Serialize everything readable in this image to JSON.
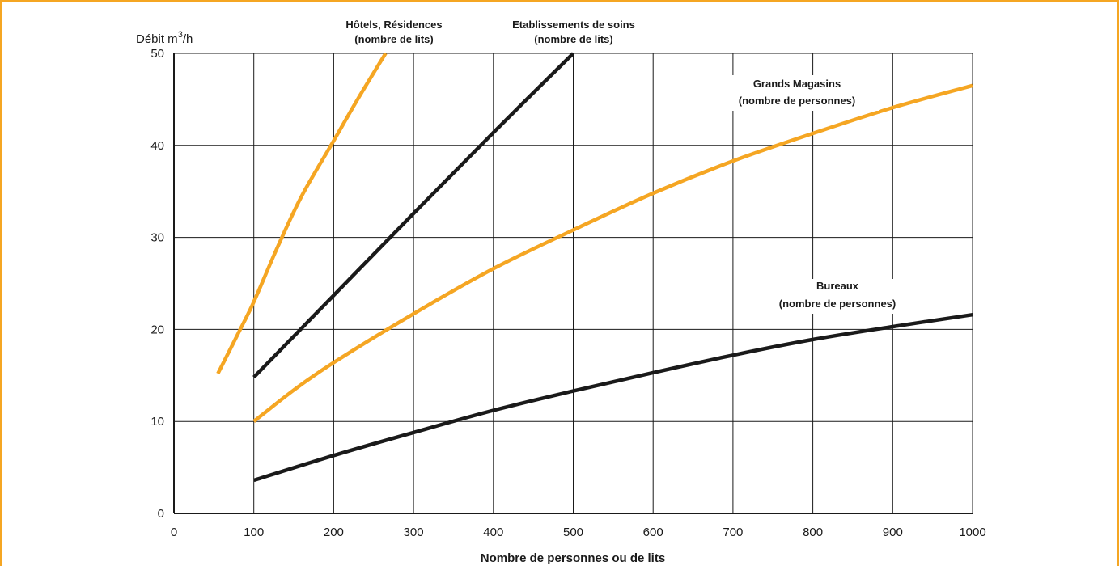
{
  "chart_data": {
    "type": "line",
    "ylabel_prefix": "Débit m",
    "ylabel_sup": "3",
    "ylabel_suffix": "/h",
    "xlabel": "Nombre de personnes ou de lits",
    "xlim": [
      0,
      1000
    ],
    "ylim": [
      0,
      50
    ],
    "x_ticks": [
      0,
      100,
      200,
      300,
      400,
      500,
      600,
      700,
      800,
      900,
      1000
    ],
    "y_ticks": [
      0,
      10,
      20,
      30,
      40,
      50
    ],
    "grid": true,
    "colors": {
      "orange": "#f5a623",
      "black": "#1a1a1a"
    },
    "series": [
      {
        "name_line1": "Hôtels, Résidences",
        "name_line2": "(nombre de lits)",
        "color": "#f5a623",
        "points": [
          [
            55,
            15.2
          ],
          [
            80,
            19.5
          ],
          [
            100,
            23.0
          ],
          [
            130,
            29.0
          ],
          [
            160,
            34.5
          ],
          [
            200,
            40.5
          ],
          [
            230,
            45.0
          ],
          [
            265,
            50.0
          ]
        ]
      },
      {
        "name_line1": "Etablissements de soins",
        "name_line2": "(nombre de lits)",
        "color": "#1a1a1a",
        "points": [
          [
            100,
            14.8
          ],
          [
            200,
            23.7
          ],
          [
            300,
            32.6
          ],
          [
            400,
            41.4
          ],
          [
            500,
            50.0
          ]
        ]
      },
      {
        "name_line1": "Grands Magasins",
        "name_line2": "(nombre de personnes)",
        "color": "#f5a623",
        "points": [
          [
            100,
            10.0
          ],
          [
            150,
            13.4
          ],
          [
            200,
            16.4
          ],
          [
            300,
            21.7
          ],
          [
            400,
            26.6
          ],
          [
            500,
            30.8
          ],
          [
            600,
            34.8
          ],
          [
            700,
            38.3
          ],
          [
            800,
            41.3
          ],
          [
            900,
            44.1
          ],
          [
            1000,
            46.5
          ]
        ]
      },
      {
        "name_line1": "Bureaux",
        "name_line2": "(nombre de personnes)",
        "color": "#1a1a1a",
        "points": [
          [
            100,
            3.6
          ],
          [
            200,
            6.3
          ],
          [
            300,
            8.8
          ],
          [
            400,
            11.2
          ],
          [
            500,
            13.3
          ],
          [
            600,
            15.3
          ],
          [
            700,
            17.2
          ],
          [
            800,
            18.9
          ],
          [
            900,
            20.3
          ],
          [
            1000,
            21.6
          ]
        ]
      }
    ]
  }
}
